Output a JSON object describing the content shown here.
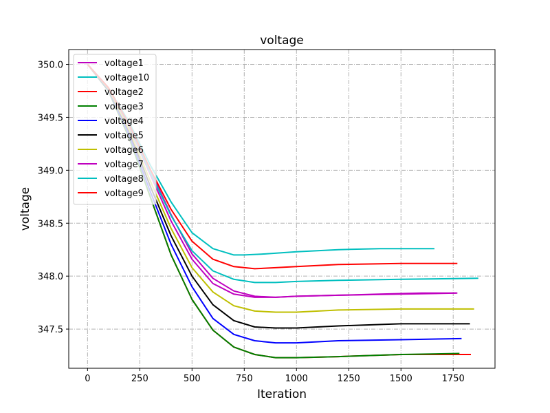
{
  "chart_data": {
    "type": "line",
    "title": "voltage",
    "xlabel": "Iteration",
    "ylabel": "voltage",
    "xlim": [
      -90,
      1950
    ],
    "ylim": [
      347.13,
      350.14
    ],
    "xticks": [
      0,
      250,
      500,
      750,
      1000,
      1250,
      1500,
      1750
    ],
    "xtick_labels": [
      "0",
      "250",
      "500",
      "750",
      "1000",
      "1250",
      "1500",
      "1750"
    ],
    "yticks": [
      347.5,
      348.0,
      348.5,
      349.0,
      349.5,
      350.0
    ],
    "ytick_labels": [
      "347.5",
      "348.0",
      "348.5",
      "349.0",
      "349.5",
      "350.0"
    ],
    "grid": true,
    "legend_position": "upper-left",
    "series": [
      {
        "name": "voltage1",
        "color": "#bf00bf",
        "points": [
          [
            0,
            350.0
          ],
          [
            100,
            349.78
          ],
          [
            200,
            349.43
          ],
          [
            300,
            349.0
          ],
          [
            400,
            348.58
          ],
          [
            500,
            348.21
          ],
          [
            600,
            347.98
          ],
          [
            700,
            347.86
          ],
          [
            800,
            347.81
          ],
          [
            900,
            347.8
          ],
          [
            1000,
            347.81
          ],
          [
            1200,
            347.82
          ],
          [
            1400,
            347.83
          ],
          [
            1600,
            347.84
          ],
          [
            1770,
            347.84
          ]
        ]
      },
      {
        "name": "voltage10",
        "color": "#00bfbf",
        "points": [
          [
            0,
            350.0
          ],
          [
            100,
            349.78
          ],
          [
            200,
            349.45
          ],
          [
            300,
            349.05
          ],
          [
            400,
            348.7
          ],
          [
            500,
            348.41
          ],
          [
            600,
            348.26
          ],
          [
            700,
            348.2
          ],
          [
            750,
            348.2
          ],
          [
            850,
            348.21
          ],
          [
            1000,
            348.23
          ],
          [
            1200,
            348.25
          ],
          [
            1400,
            348.26
          ],
          [
            1660,
            348.26
          ]
        ]
      },
      {
        "name": "voltage2",
        "color": "#ff0000",
        "points": [
          [
            0,
            350.0
          ],
          [
            100,
            349.75
          ],
          [
            200,
            349.3
          ],
          [
            300,
            348.75
          ],
          [
            400,
            348.2
          ],
          [
            500,
            347.78
          ],
          [
            600,
            347.49
          ],
          [
            700,
            347.33
          ],
          [
            800,
            347.26
          ],
          [
            900,
            347.23
          ],
          [
            1000,
            347.23
          ],
          [
            1200,
            347.24
          ],
          [
            1500,
            347.26
          ],
          [
            1835,
            347.26
          ]
        ]
      },
      {
        "name": "voltage3",
        "color": "#008000",
        "points": [
          [
            0,
            350.0
          ],
          [
            100,
            349.75
          ],
          [
            200,
            349.3
          ],
          [
            300,
            348.75
          ],
          [
            400,
            348.2
          ],
          [
            500,
            347.78
          ],
          [
            600,
            347.49
          ],
          [
            700,
            347.33
          ],
          [
            800,
            347.26
          ],
          [
            900,
            347.23
          ],
          [
            1000,
            347.23
          ],
          [
            1200,
            347.24
          ],
          [
            1500,
            347.26
          ],
          [
            1780,
            347.27
          ]
        ]
      },
      {
        "name": "voltage4",
        "color": "#0000ff",
        "points": [
          [
            0,
            350.0
          ],
          [
            100,
            349.76
          ],
          [
            200,
            349.33
          ],
          [
            300,
            348.8
          ],
          [
            400,
            348.3
          ],
          [
            500,
            347.9
          ],
          [
            600,
            347.6
          ],
          [
            700,
            347.45
          ],
          [
            800,
            347.39
          ],
          [
            900,
            347.37
          ],
          [
            1000,
            347.37
          ],
          [
            1200,
            347.39
          ],
          [
            1500,
            347.4
          ],
          [
            1790,
            347.41
          ]
        ]
      },
      {
        "name": "voltage5",
        "color": "#000000",
        "points": [
          [
            0,
            350.0
          ],
          [
            100,
            349.77
          ],
          [
            200,
            349.36
          ],
          [
            300,
            348.85
          ],
          [
            400,
            348.38
          ],
          [
            500,
            348.0
          ],
          [
            600,
            347.73
          ],
          [
            700,
            347.58
          ],
          [
            800,
            347.52
          ],
          [
            900,
            347.51
          ],
          [
            1000,
            347.51
          ],
          [
            1200,
            347.53
          ],
          [
            1500,
            347.55
          ],
          [
            1830,
            347.55
          ]
        ]
      },
      {
        "name": "voltage6",
        "color": "#bfbf00",
        "points": [
          [
            0,
            350.0
          ],
          [
            100,
            349.77
          ],
          [
            200,
            349.38
          ],
          [
            300,
            348.9
          ],
          [
            400,
            348.45
          ],
          [
            500,
            348.08
          ],
          [
            600,
            347.85
          ],
          [
            700,
            347.72
          ],
          [
            800,
            347.67
          ],
          [
            900,
            347.66
          ],
          [
            1000,
            347.66
          ],
          [
            1200,
            347.68
          ],
          [
            1500,
            347.69
          ],
          [
            1850,
            347.69
          ]
        ]
      },
      {
        "name": "voltage7",
        "color": "#bf00bf",
        "points": [
          [
            0,
            350.0
          ],
          [
            100,
            349.78
          ],
          [
            200,
            349.41
          ],
          [
            300,
            348.96
          ],
          [
            400,
            348.52
          ],
          [
            500,
            348.16
          ],
          [
            600,
            347.93
          ],
          [
            700,
            347.83
          ],
          [
            800,
            347.8
          ],
          [
            900,
            347.8
          ],
          [
            1000,
            347.81
          ],
          [
            1200,
            347.82
          ],
          [
            1500,
            347.83
          ],
          [
            1765,
            347.84
          ]
        ]
      },
      {
        "name": "voltage8",
        "color": "#00bfbf",
        "points": [
          [
            0,
            350.0
          ],
          [
            100,
            349.78
          ],
          [
            200,
            349.42
          ],
          [
            300,
            348.98
          ],
          [
            400,
            348.57
          ],
          [
            500,
            348.24
          ],
          [
            600,
            348.05
          ],
          [
            700,
            347.97
          ],
          [
            800,
            347.94
          ],
          [
            900,
            347.94
          ],
          [
            1000,
            347.95
          ],
          [
            1200,
            347.96
          ],
          [
            1500,
            347.97
          ],
          [
            1870,
            347.98
          ]
        ]
      },
      {
        "name": "voltage9",
        "color": "#ff0000",
        "points": [
          [
            0,
            350.0
          ],
          [
            100,
            349.78
          ],
          [
            200,
            349.43
          ],
          [
            300,
            349.01
          ],
          [
            400,
            348.63
          ],
          [
            500,
            348.33
          ],
          [
            600,
            348.16
          ],
          [
            700,
            348.09
          ],
          [
            800,
            348.07
          ],
          [
            900,
            348.08
          ],
          [
            1000,
            348.09
          ],
          [
            1200,
            348.11
          ],
          [
            1500,
            348.12
          ],
          [
            1770,
            348.12
          ]
        ]
      }
    ]
  }
}
